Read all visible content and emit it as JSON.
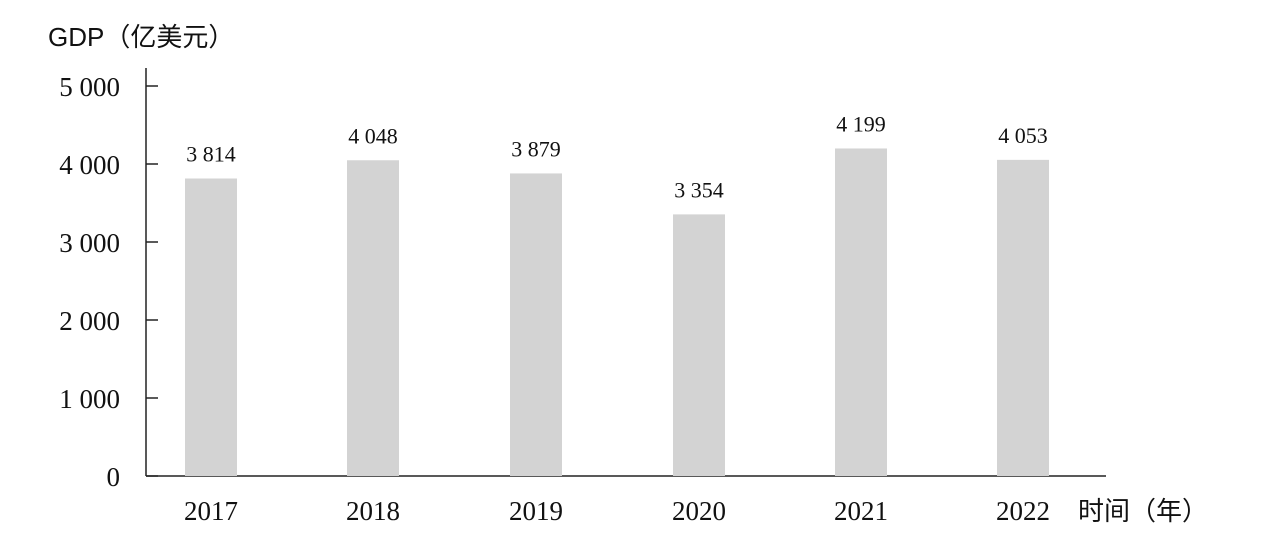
{
  "chart_data": {
    "type": "bar",
    "ylabel": "GDP（亿美元）",
    "xlabel": "时间（年）",
    "categories": [
      "2017",
      "2018",
      "2019",
      "2020",
      "2021",
      "2022"
    ],
    "values": [
      3814,
      4048,
      3879,
      3354,
      4199,
      4053
    ],
    "value_labels": [
      "3 814",
      "4 048",
      "3 879",
      "3 354",
      "4 199",
      "4 053"
    ],
    "ylim": [
      0,
      5000
    ],
    "yticks": [
      0,
      1000,
      2000,
      3000,
      4000,
      5000
    ],
    "ytick_labels": [
      "0",
      "1 000",
      "2 000",
      "3 000",
      "4 000",
      "5 000"
    ],
    "grid": false,
    "legend": "none",
    "bar_color": "#d3d3d3"
  }
}
